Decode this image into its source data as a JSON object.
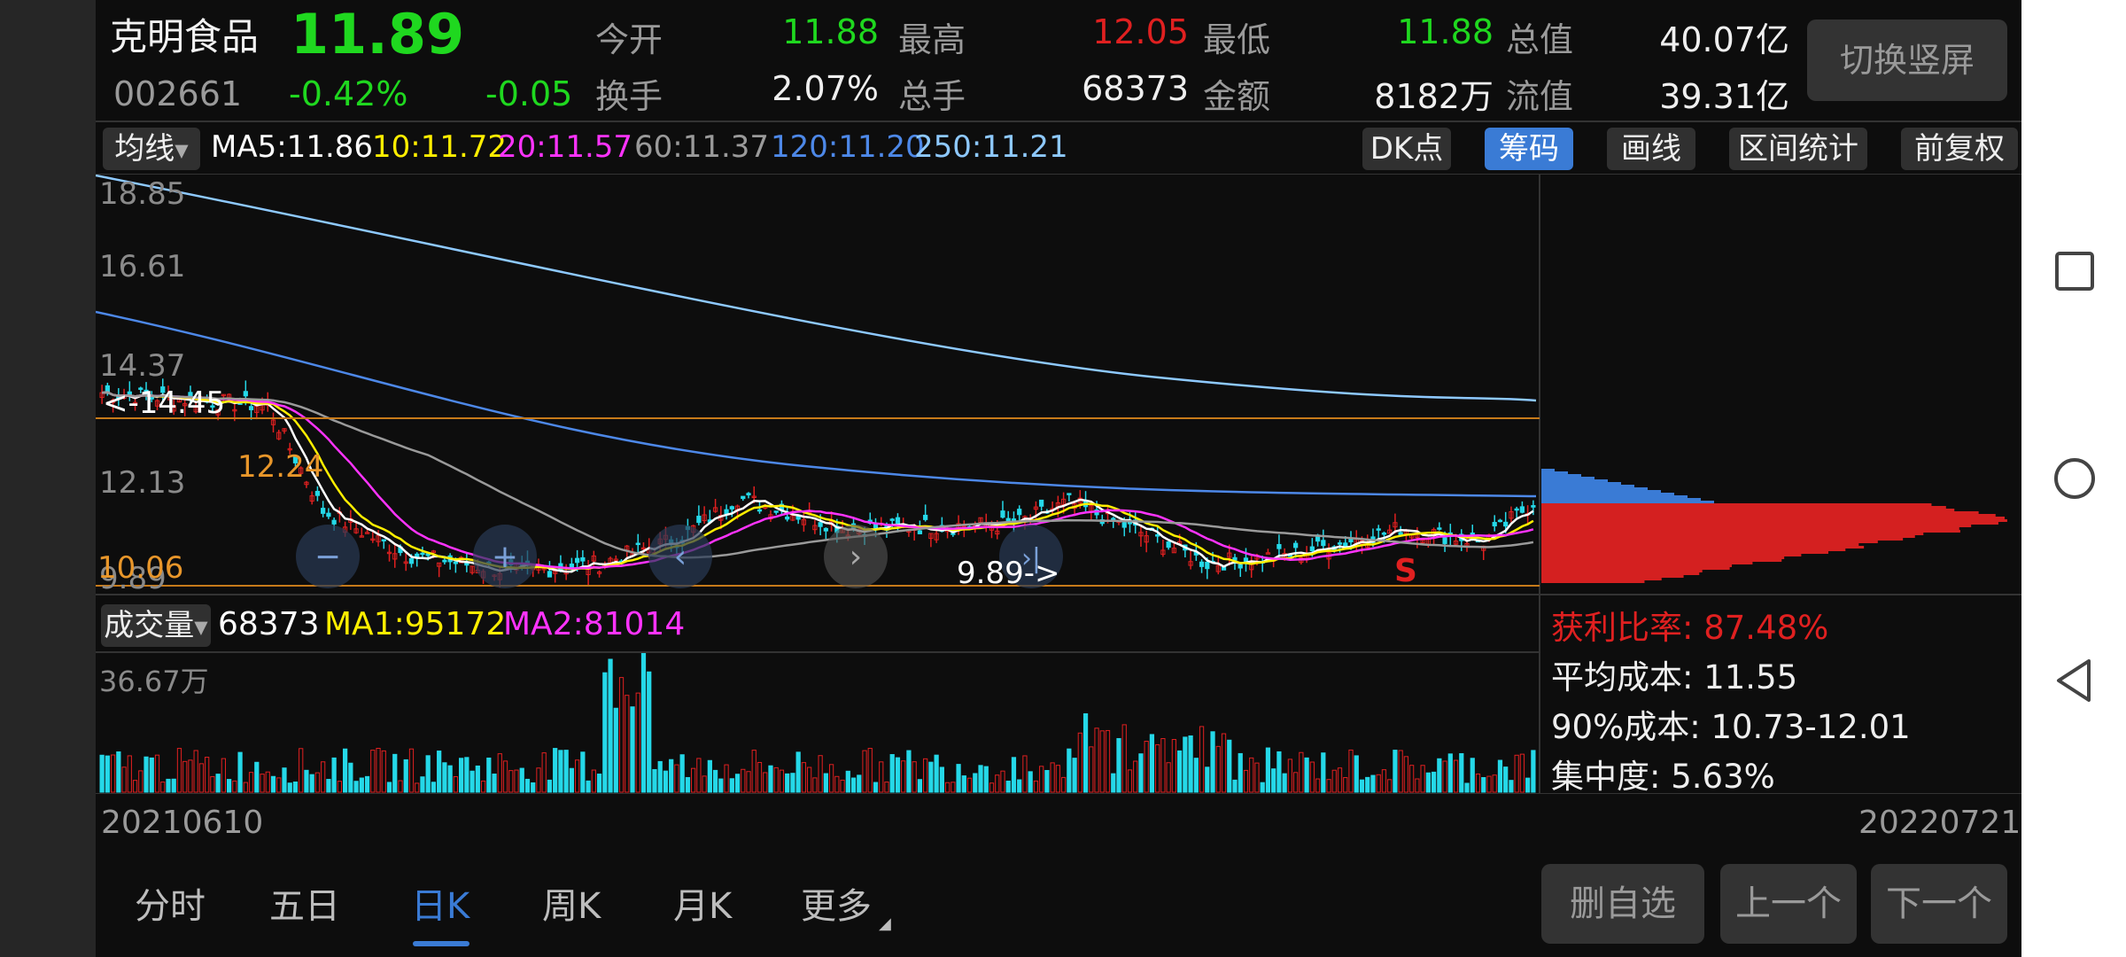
{
  "stock": {
    "name": "克明食品",
    "price": "11.89",
    "code": "002661",
    "pct": "-0.42%",
    "change": "-0.05"
  },
  "quote": [
    {
      "label": "今开",
      "value": "11.88",
      "color": "green"
    },
    {
      "label": "最高",
      "value": "12.05",
      "color": "red"
    },
    {
      "label": "最低",
      "value": "11.88",
      "color": "green"
    },
    {
      "label": "总值",
      "value": "40.07亿",
      "color": "white"
    },
    {
      "label": "换手",
      "value": "2.07%",
      "color": "white"
    },
    {
      "label": "总手",
      "value": "68373",
      "color": "white"
    },
    {
      "label": "金额",
      "value": "8182万",
      "color": "white"
    },
    {
      "label": "流值",
      "value": "39.31亿",
      "color": "white"
    }
  ],
  "switch_button": "切换竖屏",
  "ma_bar": {
    "select": "均线",
    "ma5": "MA5:11.86",
    "ma10": "10:11.72",
    "ma20": "20:11.57",
    "ma60": "60:11.37",
    "ma120": "120:11.20",
    "ma250": "250:11.21"
  },
  "tools": [
    "DK点",
    "筹码",
    "画线",
    "区间统计",
    "前复权"
  ],
  "price_axis": [
    "18.85",
    "16.61",
    "14.37",
    "12.13",
    "9.89"
  ],
  "annotations": {
    "high_marker": "<-14.45",
    "level_high": "12.24",
    "level_low": "10.06",
    "low_marker": "9.89->",
    "signal": "S"
  },
  "volume_bar": {
    "select": "成交量",
    "value": "68373",
    "ma1": "MA1:95172",
    "ma2": "MA2:81014",
    "axis_max": "36.67万"
  },
  "chips": {
    "profit": "获利比率: 87.48%",
    "avg": "平均成本: 11.55",
    "cost90": "90%成本:  10.73-12.01",
    "conc": "集中度: 5.63%"
  },
  "dates": {
    "start": "20210610",
    "end": "20220721"
  },
  "periods": [
    "分时",
    "五日",
    "日K",
    "周K",
    "月K",
    "更多"
  ],
  "active_period": 2,
  "buttons": [
    "删自选",
    "上一个",
    "下一个"
  ],
  "colors": {
    "up": "#e02020",
    "down": "#1fd81f",
    "ma5": "#ffffff",
    "ma10": "#ffee00",
    "ma20": "#ff33ff",
    "ma60": "#9a9a9a",
    "ma120": "#4d88e8",
    "ma250": "#8ec9ff",
    "accent": "#3a7bd5"
  },
  "chart_data": {
    "type": "line",
    "x": [
      "20210610",
      "20220721"
    ],
    "y_ticks": [
      18.85,
      16.61,
      14.37,
      12.13,
      9.89
    ],
    "ylim": [
      9.89,
      18.85
    ],
    "series": [
      {
        "name": "MA5",
        "value": 11.86
      },
      {
        "name": "10",
        "value": 11.72
      },
      {
        "name": "20",
        "value": 11.57
      },
      {
        "name": "60",
        "value": 11.37
      },
      {
        "name": "120",
        "value": 11.2
      },
      {
        "name": "250",
        "value": 11.21
      }
    ],
    "volume_max": "36.67万"
  }
}
